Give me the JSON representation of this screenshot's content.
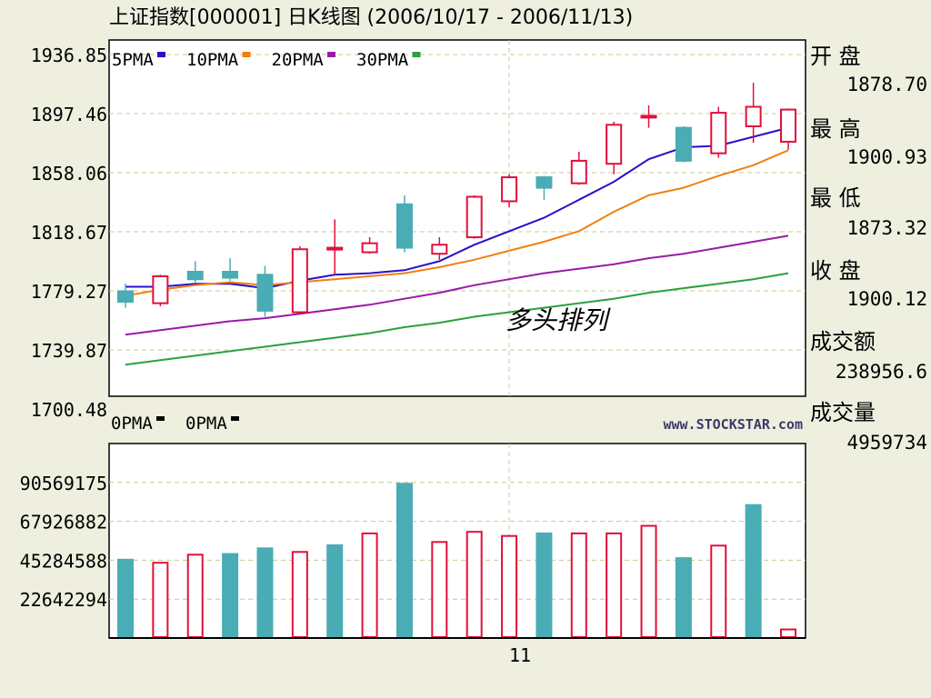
{
  "title": "上证指数[000001] 日K线图 (2006/10/17 - 2006/11/13)",
  "watermark": "www.STOCKSTAR.com",
  "annotation": "多头排列",
  "colors": {
    "background": "#efefe0",
    "plot_bg": "#ffffff",
    "up": "#e0103a",
    "down": "#4aacb4",
    "grid": "#c8c896",
    "ma5": "#2a10c8",
    "ma10": "#f08010",
    "ma20": "#9a1aa8",
    "ma30": "#2aa040"
  },
  "legend": [
    {
      "label": "5PMA",
      "color": "#2a10c8"
    },
    {
      "label": "10PMA",
      "color": "#f08010"
    },
    {
      "label": "20PMA",
      "color": "#9a1aa8"
    },
    {
      "label": "30PMA",
      "color": "#2aa040"
    }
  ],
  "vol_legend": [
    {
      "label": "0PMA"
    },
    {
      "label": "0PMA"
    }
  ],
  "side_info": [
    {
      "label": "开 盘",
      "value": "1878.70"
    },
    {
      "label": "最 高",
      "value": "1900.93"
    },
    {
      "label": "最 低",
      "value": "1873.32"
    },
    {
      "label": "收 盘",
      "value": "1900.12"
    },
    {
      "label": "成交额",
      "value": "238956.6"
    },
    {
      "label": "成交量",
      "value": "4959734"
    }
  ],
  "chart_data": {
    "type": "candlestick",
    "price_ticks": [
      "1936.85",
      "1897.46",
      "1858.06",
      "1818.67",
      "1779.27",
      "1739.87",
      "1700.48"
    ],
    "price_range": [
      1700.48,
      1936.85
    ],
    "volume_ticks": [
      "90569175",
      "67926882",
      "45284588",
      "22642294"
    ],
    "volume_range": [
      0,
      113211469
    ],
    "x_label": "11",
    "x_label_index": 11,
    "candles": [
      {
        "open": 1779,
        "close": 1772,
        "high": 1784,
        "low": 1768
      },
      {
        "open": 1771,
        "close": 1789,
        "high": 1790,
        "low": 1769
      },
      {
        "open": 1792,
        "close": 1787,
        "high": 1799,
        "low": 1785
      },
      {
        "open": 1792,
        "close": 1788,
        "high": 1801,
        "low": 1786
      },
      {
        "open": 1790,
        "close": 1766,
        "high": 1796,
        "low": 1762
      },
      {
        "open": 1765,
        "close": 1807,
        "high": 1809,
        "low": 1764
      },
      {
        "open": 1808,
        "close": 1808,
        "high": 1827,
        "low": 1790
      },
      {
        "open": 1805,
        "close": 1811,
        "high": 1815,
        "low": 1804
      },
      {
        "open": 1837,
        "close": 1808,
        "high": 1843,
        "low": 1805
      },
      {
        "open": 1804,
        "close": 1810,
        "high": 1815,
        "low": 1800
      },
      {
        "open": 1815,
        "close": 1842,
        "high": 1843,
        "low": 1814
      },
      {
        "open": 1839,
        "close": 1855,
        "high": 1857,
        "low": 1835
      },
      {
        "open": 1855,
        "close": 1848,
        "high": 1856,
        "low": 1840
      },
      {
        "open": 1851,
        "close": 1866,
        "high": 1872,
        "low": 1850
      },
      {
        "open": 1864,
        "close": 1890,
        "high": 1892,
        "low": 1857
      },
      {
        "open": 1895,
        "close": 1896,
        "high": 1903,
        "low": 1888
      },
      {
        "open": 1888,
        "close": 1866,
        "high": 1889,
        "low": 1865
      },
      {
        "open": 1871,
        "close": 1898,
        "high": 1902,
        "low": 1868
      },
      {
        "open": 1889,
        "close": 1902,
        "high": 1918,
        "low": 1878
      },
      {
        "open": 1878.7,
        "close": 1900.12,
        "high": 1900.93,
        "low": 1873.32
      }
    ],
    "volumes": [
      45600000,
      43800000,
      48500000,
      48900000,
      52200000,
      50100000,
      54000000,
      60900000,
      89800000,
      55900000,
      61800000,
      59400000,
      60900000,
      60900000,
      60900000,
      65300000,
      46500000,
      53800000,
      77400000,
      5000000
    ],
    "volume_up": [
      false,
      true,
      true,
      false,
      false,
      true,
      false,
      true,
      false,
      true,
      true,
      true,
      false,
      true,
      true,
      true,
      false,
      true,
      false,
      true
    ],
    "ma_series": [
      {
        "name": "5PMA",
        "color": "#2a10c8",
        "values": [
          1782,
          1782,
          1784,
          1784,
          1781,
          1786,
          1790,
          1791,
          1793,
          1799,
          1810,
          1819,
          1828,
          1840,
          1852,
          1867,
          1875,
          1876,
          1882,
          1888
        ]
      },
      {
        "name": "10PMA",
        "color": "#f08010",
        "values": [
          1776,
          1780,
          1783,
          1785,
          1783,
          1785,
          1787,
          1789,
          1791,
          1795,
          1800,
          1806,
          1812,
          1819,
          1832,
          1843,
          1848,
          1856,
          1863,
          1873
        ]
      },
      {
        "name": "20PMA",
        "color": "#9a1aa8",
        "values": [
          1750,
          1753,
          1756,
          1759,
          1761,
          1764,
          1767,
          1770,
          1774,
          1778,
          1783,
          1787,
          1791,
          1794,
          1797,
          1801,
          1804,
          1808,
          1812,
          1816
        ]
      },
      {
        "name": "30PMA",
        "color": "#2aa040",
        "values": [
          1730,
          1733,
          1736,
          1739,
          1742,
          1745,
          1748,
          1751,
          1755,
          1758,
          1762,
          1765,
          1768,
          1771,
          1774,
          1778,
          1781,
          1784,
          1787,
          1791
        ]
      }
    ]
  }
}
